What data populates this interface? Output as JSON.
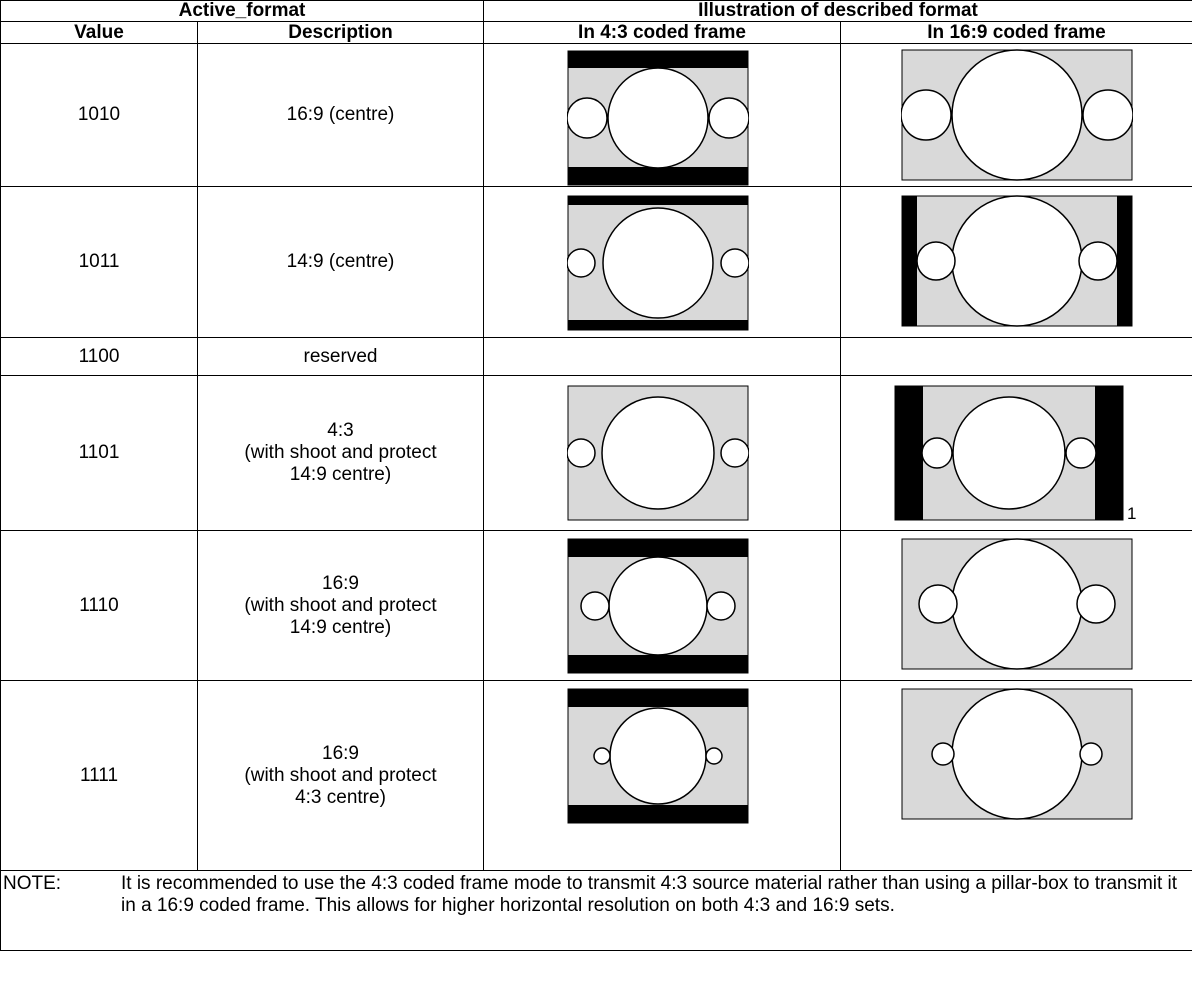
{
  "header": {
    "group_left": "Active_format",
    "group_right": "Illustration of described format",
    "col_value": "Value",
    "col_description": "Description",
    "col_43": "In 4:3 coded frame",
    "col_169": "In 16:9 coded frame"
  },
  "rows": [
    {
      "value": "1010",
      "description": [
        "16:9 (centre)"
      ]
    },
    {
      "value": "1011",
      "description": [
        "14:9 (centre)"
      ]
    },
    {
      "value": "1100",
      "description": [
        "reserved"
      ]
    },
    {
      "value": "1101",
      "description": [
        "4:3",
        "(with shoot and protect",
        "14:9 centre)"
      ]
    },
    {
      "value": "1110",
      "description": [
        "16:9",
        "(with shoot and protect",
        "14:9 centre)"
      ]
    },
    {
      "value": "1111",
      "description": [
        "16:9",
        "(with shoot and protect",
        "4:3 centre)"
      ]
    }
  ],
  "footnote_marker": "1",
  "note": {
    "label": "NOTE:",
    "text": "It is recommended to use the 4:3 coded frame mode to transmit 4:3 source material rather than using a pillar-box to transmit it in a 16:9 coded frame. This allows for higher horizontal resolution on both 4:3 and 16:9 sets."
  },
  "colors": {
    "frame_fill": "#d9d9d9",
    "bar": "#000000",
    "circle": "#ffffff"
  }
}
